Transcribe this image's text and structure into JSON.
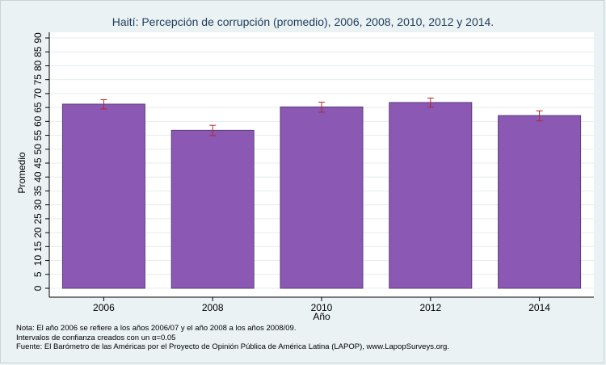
{
  "chart_data": {
    "type": "bar",
    "title": "Haití: Percepción de corrupción (promedio), 2006, 2008, 2010, 2012 y 2014.",
    "xlabel": "Año",
    "ylabel": "Promedio",
    "categories": [
      "2006",
      "2008",
      "2010",
      "2012",
      "2014"
    ],
    "values": [
      66.2,
      56.8,
      65.2,
      66.8,
      62.1
    ],
    "ci_low": [
      64.5,
      54.9,
      63.3,
      65.1,
      60.2
    ],
    "ci_high": [
      67.8,
      58.6,
      66.9,
      68.4,
      63.8
    ],
    "yticks": [
      0,
      5,
      10,
      15,
      20,
      25,
      30,
      35,
      40,
      45,
      50,
      55,
      60,
      65,
      70,
      75,
      80,
      85,
      90
    ],
    "ylim": [
      0,
      90
    ],
    "grid": true,
    "colors": {
      "bar": "#8b58b4",
      "bar_edge": "#5a3c78",
      "error_bar": "#b02a2a",
      "plot_background": "#ffffff",
      "page_background": "#eaf2f3",
      "gridline": "#e6ecee"
    }
  },
  "notes": [
    "Nota: El año 2006 se refiere a los años 2006/07 y el año 2008 a los años 2008/09.",
    "Intervalos de confianza creados con un α=0.05",
    "Fuente: El Barómetro de las Américas por el Proyecto de Opinión Pública de América Latina (LAPOP), www.LapopSurveys.org."
  ]
}
